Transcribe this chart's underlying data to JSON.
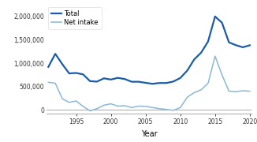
{
  "xlabel": "Year",
  "ylabel": "",
  "total_years": [
    1991,
    1992,
    1993,
    1994,
    1995,
    1996,
    1997,
    1998,
    1999,
    2000,
    2001,
    2002,
    2003,
    2004,
    2005,
    2006,
    2007,
    2008,
    2009,
    2010,
    2011,
    2012,
    2013,
    2014,
    2015,
    2016,
    2017,
    2018,
    2019,
    2020
  ],
  "total_values": [
    920000,
    1200000,
    980000,
    780000,
    790000,
    760000,
    615000,
    605000,
    675000,
    649000,
    685000,
    660000,
    602000,
    602000,
    579000,
    558000,
    575000,
    575000,
    607000,
    683000,
    841000,
    1080000,
    1226000,
    1465000,
    2000000,
    1865000,
    1445000,
    1385000,
    1340000,
    1383000
  ],
  "net_years": [
    1991,
    1992,
    1993,
    1994,
    1995,
    1996,
    1997,
    1998,
    1999,
    2000,
    2001,
    2002,
    2003,
    2004,
    2005,
    2006,
    2007,
    2008,
    2009,
    2010,
    2011,
    2012,
    2013,
    2014,
    2015,
    2016,
    2017,
    2018,
    2019,
    2020
  ],
  "net_values": [
    590000,
    570000,
    240000,
    160000,
    190000,
    75000,
    -20000,
    25000,
    100000,
    130000,
    80000,
    90000,
    50000,
    80000,
    75000,
    50000,
    25000,
    10000,
    -10000,
    50000,
    270000,
    370000,
    430000,
    570000,
    1150000,
    750000,
    400000,
    390000,
    410000,
    400000
  ],
  "total_color": "#1a5ca8",
  "net_color": "#8ab8d8",
  "total_linewidth": 1.6,
  "net_linewidth": 1.1,
  "ylim": [
    -80000,
    2200000
  ],
  "xlim": [
    1991,
    2020
  ],
  "yticks": [
    0,
    500000,
    1000000,
    1500000,
    2000000
  ],
  "ytick_labels": [
    "0",
    "500,000",
    "1,000,000",
    "1,500,000",
    "2,000,000"
  ],
  "xticks": [
    1995,
    2000,
    2005,
    2010,
    2015,
    2020
  ],
  "legend_labels": [
    "Total",
    "Net intake"
  ],
  "background_color": "#ffffff",
  "tick_fontsize": 5.5,
  "xlabel_fontsize": 7.0,
  "legend_fontsize": 6.0
}
